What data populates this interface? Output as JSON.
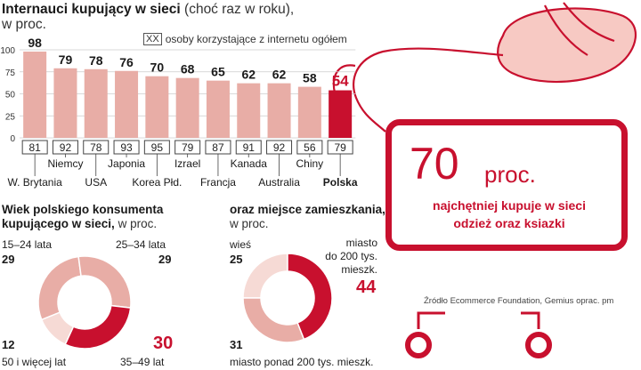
{
  "header": {
    "title": "Internauci kupujący w sieci",
    "title_note": "(choć raz w roku),",
    "subtitle": "w proc."
  },
  "legend": {
    "box_label": "XX",
    "text": "osoby korzystające z internetu ogółem"
  },
  "colors": {
    "bar": "#e8ada6",
    "highlight": "#c8102e",
    "light": "#f6dad5",
    "grid": "#cccccc"
  },
  "chart_data": [
    {
      "type": "bar",
      "categories": [
        "W. Brytania",
        "Niemcy",
        "USA",
        "Japonia",
        "Korea Płd.",
        "Izrael",
        "Francja",
        "Kanada",
        "Australia",
        "Chiny",
        "Polska"
      ],
      "series": [
        {
          "name": "",
          "values": [
            98,
            79,
            78,
            76,
            70,
            68,
            65,
            62,
            62,
            58,
            54
          ]
        },
        {
          "name": "osoby korzystające z internetu ogółem",
          "values": [
            81,
            92,
            78,
            93,
            95,
            79,
            87,
            91,
            92,
            56,
            79
          ]
        }
      ],
      "highlight_category": "Polska",
      "yticks": [
        0,
        25,
        50,
        75,
        100
      ],
      "ylim": [
        0,
        100
      ],
      "grid": true
    },
    {
      "type": "pie",
      "title": "Wiek polskiego konsumenta kupującego w sieci,",
      "title_note": "w proc.",
      "labels": [
        "15–24 lata",
        "25–34 lata",
        "35–49 lat",
        "50 i więcej lat"
      ],
      "values": [
        29,
        29,
        30,
        12
      ]
    },
    {
      "type": "pie",
      "title": "oraz miejsce zamieszkania,",
      "title_note": "w proc.",
      "labels": [
        "wieś",
        "miasto do 200 tys. mieszk.",
        "miasto ponad 200 tys. mieszk."
      ],
      "values": [
        25,
        44,
        31
      ]
    }
  ],
  "donut_labels": {
    "age": [
      {
        "label": "15–24 lata",
        "value": "29"
      },
      {
        "label": "25–34 lata",
        "value": "29"
      },
      {
        "label": "35–49 lat",
        "value": "30"
      },
      {
        "label": "50 i więcej lat",
        "value": "12"
      }
    ],
    "place": [
      {
        "label": "wieś",
        "value": "25"
      },
      {
        "label_lines": [
          "miasto",
          "do 200 tys.",
          "mieszk."
        ],
        "value": "44"
      },
      {
        "label": "miasto ponad 200 tys. mieszk.",
        "value": "31"
      }
    ]
  },
  "callout": {
    "number": "70",
    "unit": "proc.",
    "text_line1": "najchętniej kupuje w sieci",
    "text_line2": "odzież oraz ksiazki"
  },
  "source": "Źródło Ecommerce Foundation, Gemius oprac. pm"
}
